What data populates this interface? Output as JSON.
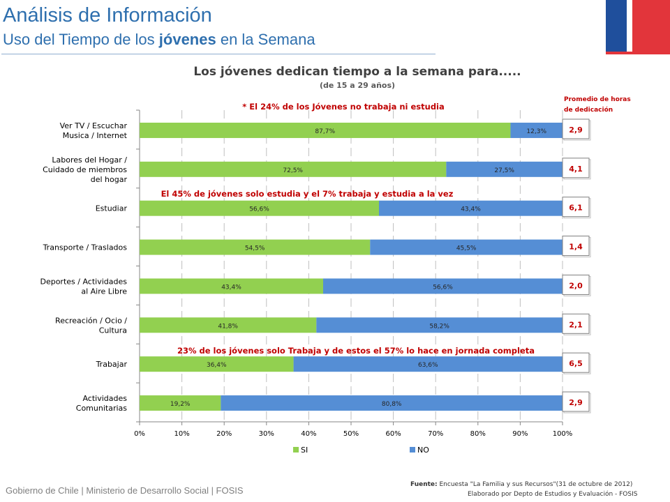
{
  "header": {
    "title": "Análisis de Información",
    "subtitle_pre": "Uso del Tiempo de los ",
    "subtitle_bold": "jóvenes",
    "subtitle_post": " en la Semana"
  },
  "footer": {
    "left": "Gobierno de Chile | Ministerio de Desarrollo Social | FOSIS",
    "source_label": "Fuente:",
    "source_text": "Encuesta \"La Familia y sus Recursos\"(31 de octubre de 2012)",
    "source_text2": "Elaborado por Depto de Estudios y Evaluación - FOSIS"
  },
  "colors": {
    "si": "#92d050",
    "no": "#558ed5",
    "red": "#c00000",
    "title": "#2e6fae"
  },
  "chart_data": {
    "type": "bar",
    "orientation": "horizontal",
    "stacked": true,
    "title": "Los jóvenes dedican tiempo a la semana para.....",
    "subtitle": "(de 15 a 29 años)",
    "categories": [
      "Ver TV / Escuchar Musica / Internet",
      "Labores del Hogar / Cuidado de miembros del hogar",
      "Estudiar",
      "Transporte / Traslados",
      "Deportes / Actividades al Aire Libre",
      "Recreación / Ocio / Cultura",
      "Trabajar",
      "Actividades Comunitarias"
    ],
    "series": [
      {
        "name": "SI",
        "values": [
          87.7,
          72.5,
          56.6,
          54.5,
          43.4,
          41.8,
          36.4,
          19.2
        ],
        "labels": [
          "87,7%",
          "72,5%",
          "56,6%",
          "54,5%",
          "43,4%",
          "41,8%",
          "36,4%",
          "19,2%"
        ]
      },
      {
        "name": "NO",
        "values": [
          12.3,
          27.5,
          43.4,
          45.5,
          56.6,
          58.2,
          63.6,
          80.8
        ],
        "labels": [
          "12,3%",
          "27,5%",
          "43,4%",
          "45,5%",
          "56,6%",
          "58,2%",
          "63,6%",
          "80,8%"
        ]
      }
    ],
    "xlim": [
      0,
      100
    ],
    "xticks": [
      "0%",
      "10%",
      "20%",
      "30%",
      "40%",
      "50%",
      "60%",
      "70%",
      "80%",
      "90%",
      "100%"
    ],
    "grid": true,
    "legend": "bottom",
    "hours_header": [
      "Promedio de horas",
      "de dedicación"
    ],
    "hours": [
      "2,9",
      "4,1",
      "6,1",
      "1,4",
      "2,0",
      "2,1",
      "6,5",
      "2,9"
    ],
    "annotations": [
      "* El 24% de los Jóvenes no trabaja ni estudia",
      "El 45% de jóvenes solo estudia y el 7% trabaja y estudia a la vez",
      "23% de los jóvenes solo Trabaja y de estos el 57% lo hace en jornada completa"
    ]
  }
}
